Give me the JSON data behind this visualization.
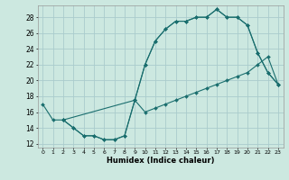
{
  "xlabel": "Humidex (Indice chaleur)",
  "background_color": "#cce8e0",
  "grid_color": "#aacccc",
  "line_color": "#1a6e6e",
  "xlim": [
    -0.5,
    23.5
  ],
  "ylim": [
    11.5,
    29.5
  ],
  "xticks": [
    0,
    1,
    2,
    3,
    4,
    5,
    6,
    7,
    8,
    9,
    10,
    11,
    12,
    13,
    14,
    15,
    16,
    17,
    18,
    19,
    20,
    21,
    22,
    23
  ],
  "yticks": [
    12,
    14,
    16,
    18,
    20,
    22,
    24,
    26,
    28
  ],
  "line1_x": [
    0,
    1,
    2,
    9,
    10,
    11,
    12,
    13,
    14,
    15,
    16,
    17,
    18,
    19,
    20,
    21,
    22,
    23
  ],
  "line1_y": [
    17,
    15,
    15,
    17.5,
    22,
    25,
    26.5,
    27.5,
    27.5,
    28,
    28,
    29,
    28,
    28,
    27,
    23.5,
    21,
    19.5
  ],
  "line2_x": [
    2,
    3,
    4,
    5,
    6,
    7,
    8,
    9,
    10,
    11,
    12,
    13,
    14,
    15,
    16,
    17,
    18,
    19,
    20,
    21,
    22,
    23
  ],
  "line2_y": [
    15,
    14,
    13,
    13,
    12.5,
    12.5,
    13,
    17.5,
    22,
    25,
    26.5,
    27.5,
    27.5,
    28,
    28,
    29,
    28,
    28,
    27,
    23.5,
    21,
    19.5
  ],
  "line3_x": [
    2,
    3,
    4,
    5,
    6,
    7,
    8,
    9,
    10,
    11,
    12,
    13,
    14,
    15,
    16,
    17,
    18,
    19,
    20,
    21,
    22,
    23
  ],
  "line3_y": [
    15,
    14,
    13,
    13,
    12.5,
    12.5,
    13,
    17.5,
    16,
    16.5,
    17,
    17.5,
    18,
    18.5,
    19,
    19.5,
    20,
    20.5,
    21,
    22,
    23,
    19.5
  ]
}
